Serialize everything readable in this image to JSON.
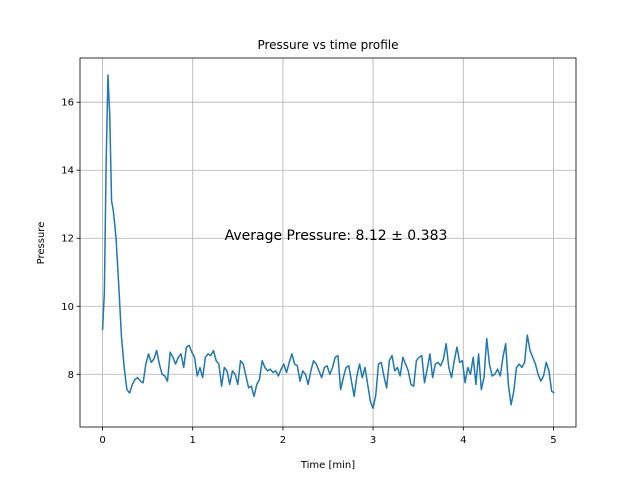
{
  "chart_data": {
    "type": "line",
    "title": "Pressure vs time profile",
    "xlabel": "Time [min]",
    "ylabel": "Pressure",
    "xlim": [
      -0.25,
      5.25
    ],
    "ylim": [
      6.45,
      17.3
    ],
    "xticks": [
      0,
      1,
      2,
      3,
      4,
      5
    ],
    "yticks": [
      8,
      10,
      12,
      14,
      16
    ],
    "grid": true,
    "annotation": "Average Pressure: 8.12 ± 0.383",
    "series": [
      {
        "color": "#1f77b4",
        "points": [
          [
            0.0,
            9.3
          ],
          [
            0.02,
            10.4
          ],
          [
            0.04,
            14.2
          ],
          [
            0.06,
            16.8
          ],
          [
            0.08,
            15.6
          ],
          [
            0.1,
            13.1
          ],
          [
            0.12,
            12.8
          ],
          [
            0.15,
            12.0
          ],
          [
            0.18,
            10.6
          ],
          [
            0.21,
            9.1
          ],
          [
            0.24,
            8.2
          ],
          [
            0.27,
            7.55
          ],
          [
            0.3,
            7.45
          ],
          [
            0.33,
            7.7
          ],
          [
            0.36,
            7.85
          ],
          [
            0.39,
            7.9
          ],
          [
            0.42,
            7.8
          ],
          [
            0.45,
            7.75
          ],
          [
            0.48,
            8.3
          ],
          [
            0.51,
            8.6
          ],
          [
            0.54,
            8.35
          ],
          [
            0.57,
            8.45
          ],
          [
            0.6,
            8.7
          ],
          [
            0.63,
            8.3
          ],
          [
            0.66,
            8.0
          ],
          [
            0.69,
            7.95
          ],
          [
            0.72,
            7.8
          ],
          [
            0.75,
            8.65
          ],
          [
            0.78,
            8.5
          ],
          [
            0.81,
            8.3
          ],
          [
            0.84,
            8.5
          ],
          [
            0.87,
            8.6
          ],
          [
            0.9,
            8.2
          ],
          [
            0.93,
            8.8
          ],
          [
            0.96,
            8.85
          ],
          [
            0.99,
            8.65
          ],
          [
            1.02,
            8.5
          ],
          [
            1.05,
            7.95
          ],
          [
            1.08,
            8.2
          ],
          [
            1.11,
            7.9
          ],
          [
            1.14,
            8.5
          ],
          [
            1.17,
            8.6
          ],
          [
            1.2,
            8.55
          ],
          [
            1.23,
            8.7
          ],
          [
            1.26,
            8.4
          ],
          [
            1.29,
            8.3
          ],
          [
            1.32,
            7.65
          ],
          [
            1.35,
            8.2
          ],
          [
            1.38,
            8.1
          ],
          [
            1.41,
            7.7
          ],
          [
            1.44,
            8.1
          ],
          [
            1.47,
            8.0
          ],
          [
            1.5,
            7.7
          ],
          [
            1.53,
            8.4
          ],
          [
            1.56,
            8.3
          ],
          [
            1.59,
            7.95
          ],
          [
            1.62,
            7.6
          ],
          [
            1.65,
            7.65
          ],
          [
            1.68,
            7.35
          ],
          [
            1.71,
            7.7
          ],
          [
            1.74,
            7.85
          ],
          [
            1.77,
            8.4
          ],
          [
            1.8,
            8.2
          ],
          [
            1.83,
            8.1
          ],
          [
            1.86,
            8.15
          ],
          [
            1.89,
            8.05
          ],
          [
            1.92,
            8.1
          ],
          [
            1.95,
            7.95
          ],
          [
            1.98,
            8.15
          ],
          [
            2.01,
            8.3
          ],
          [
            2.04,
            8.05
          ],
          [
            2.07,
            8.35
          ],
          [
            2.1,
            8.6
          ],
          [
            2.13,
            8.3
          ],
          [
            2.16,
            8.25
          ],
          [
            2.19,
            7.8
          ],
          [
            2.22,
            8.1
          ],
          [
            2.25,
            8.0
          ],
          [
            2.28,
            7.7
          ],
          [
            2.31,
            8.1
          ],
          [
            2.34,
            8.4
          ],
          [
            2.37,
            8.3
          ],
          [
            2.4,
            8.1
          ],
          [
            2.43,
            7.9
          ],
          [
            2.46,
            8.2
          ],
          [
            2.49,
            8.25
          ],
          [
            2.52,
            8.0
          ],
          [
            2.55,
            8.2
          ],
          [
            2.58,
            8.5
          ],
          [
            2.61,
            8.55
          ],
          [
            2.64,
            7.55
          ],
          [
            2.67,
            7.9
          ],
          [
            2.7,
            8.2
          ],
          [
            2.73,
            8.25
          ],
          [
            2.76,
            7.8
          ],
          [
            2.79,
            7.35
          ],
          [
            2.82,
            7.95
          ],
          [
            2.85,
            8.3
          ],
          [
            2.88,
            7.9
          ],
          [
            2.91,
            8.2
          ],
          [
            2.94,
            7.7
          ],
          [
            2.97,
            7.2
          ],
          [
            3.0,
            7.0
          ],
          [
            3.03,
            7.4
          ],
          [
            3.06,
            8.3
          ],
          [
            3.09,
            8.35
          ],
          [
            3.12,
            7.95
          ],
          [
            3.15,
            7.6
          ],
          [
            3.18,
            8.4
          ],
          [
            3.21,
            8.55
          ],
          [
            3.24,
            8.1
          ],
          [
            3.27,
            8.2
          ],
          [
            3.3,
            7.95
          ],
          [
            3.33,
            8.5
          ],
          [
            3.36,
            8.3
          ],
          [
            3.39,
            8.1
          ],
          [
            3.42,
            7.7
          ],
          [
            3.45,
            7.65
          ],
          [
            3.48,
            8.4
          ],
          [
            3.51,
            8.5
          ],
          [
            3.54,
            8.55
          ],
          [
            3.57,
            7.75
          ],
          [
            3.6,
            8.15
          ],
          [
            3.63,
            8.6
          ],
          [
            3.66,
            7.9
          ],
          [
            3.69,
            8.3
          ],
          [
            3.72,
            8.35
          ],
          [
            3.75,
            8.25
          ],
          [
            3.78,
            8.45
          ],
          [
            3.81,
            8.9
          ],
          [
            3.84,
            8.2
          ],
          [
            3.87,
            7.9
          ],
          [
            3.9,
            8.4
          ],
          [
            3.93,
            8.8
          ],
          [
            3.96,
            8.35
          ],
          [
            3.99,
            8.4
          ],
          [
            4.02,
            7.75
          ],
          [
            4.05,
            8.2
          ],
          [
            4.08,
            8.0
          ],
          [
            4.11,
            8.5
          ],
          [
            4.14,
            7.7
          ],
          [
            4.17,
            8.6
          ],
          [
            4.2,
            7.55
          ],
          [
            4.23,
            7.9
          ],
          [
            4.26,
            9.05
          ],
          [
            4.29,
            8.3
          ],
          [
            4.32,
            7.95
          ],
          [
            4.35,
            8.0
          ],
          [
            4.38,
            8.15
          ],
          [
            4.41,
            7.95
          ],
          [
            4.44,
            8.5
          ],
          [
            4.47,
            8.9
          ],
          [
            4.5,
            7.7
          ],
          [
            4.53,
            7.1
          ],
          [
            4.56,
            7.5
          ],
          [
            4.59,
            8.2
          ],
          [
            4.62,
            8.3
          ],
          [
            4.65,
            8.2
          ],
          [
            4.68,
            8.35
          ],
          [
            4.71,
            9.15
          ],
          [
            4.74,
            8.7
          ],
          [
            4.77,
            8.5
          ],
          [
            4.8,
            8.3
          ],
          [
            4.83,
            8.0
          ],
          [
            4.86,
            7.8
          ],
          [
            4.89,
            7.95
          ],
          [
            4.92,
            8.35
          ],
          [
            4.95,
            8.1
          ],
          [
            4.98,
            7.5
          ],
          [
            5.01,
            7.45
          ]
        ]
      }
    ]
  }
}
